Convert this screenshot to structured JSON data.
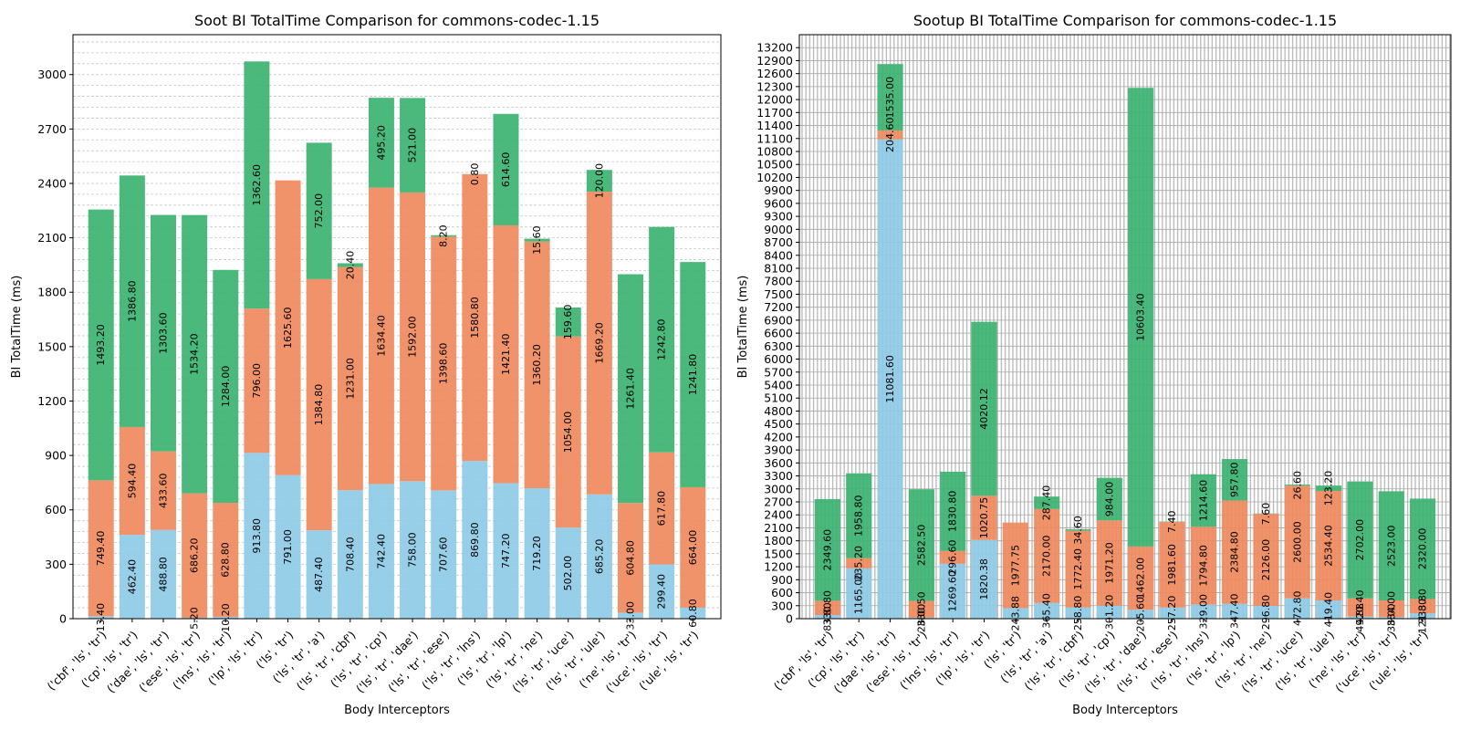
{
  "chart_data": [
    {
      "type": "bar",
      "stacked": true,
      "title": "Soot BI TotalTime Comparison for commons-codec-1.15",
      "xlabel": "Body Interceptors",
      "ylabel": "BI TotalTime (ms)",
      "ylim": [
        0,
        3220
      ],
      "yticks": [
        0,
        300,
        600,
        900,
        1200,
        1500,
        1800,
        2100,
        2400,
        2700,
        3000
      ],
      "grid": true,
      "categories": [
        "('cbf', 'ls', 'tr')",
        "('cp', 'ls', 'tr')",
        "('dae', 'ls', 'tr')",
        "('ese', 'ls', 'tr')",
        "('lns', 'ls', 'tr')",
        "('lp', 'ls', 'tr')",
        "('ls', 'tr')",
        "('ls', 'tr', 'a')",
        "('ls', 'tr', 'cbf')",
        "('ls', 'tr', 'cp')",
        "('ls', 'tr', 'dae')",
        "('ls', 'tr', 'ese')",
        "('ls', 'tr', 'lns')",
        "('ls', 'tr', 'lp')",
        "('ls', 'tr', 'ne')",
        "('ls', 'tr', 'uce')",
        "('ls', 'tr', 'ule')",
        "('ne', 'ls', 'tr')",
        "('uce', 'ls', 'tr')",
        "('ule', 'ls', 'tr')"
      ],
      "series": [
        {
          "color": "#8ecae6",
          "values": [
            13.4,
            462.4,
            488.8,
            5.2,
            10.2,
            913.8,
            791.0,
            487.4,
            708.4,
            742.4,
            758.0,
            707.6,
            869.8,
            747.2,
            719.2,
            502.0,
            685.2,
            33.0,
            299.4,
            60.8
          ],
          "labels": [
            "13.40",
            "462.40",
            "488.80",
            "5.20",
            "10.20",
            "913.80",
            "791.00",
            "487.40",
            "708.40",
            "742.40",
            "758.00",
            "707.60",
            "869.80",
            "747.20",
            "719.20",
            "502.00",
            "685.20",
            "33.00",
            "299.40",
            "60.80"
          ]
        },
        {
          "color": "#f08a5d",
          "values": [
            749.4,
            594.4,
            433.6,
            686.2,
            628.8,
            796.0,
            1625.6,
            1384.8,
            1231.0,
            1634.4,
            1592.0,
            1398.6,
            1580.8,
            1421.4,
            1360.2,
            1054.0,
            1669.2,
            604.8,
            617.8,
            664.0
          ],
          "labels": [
            "749.40",
            "594.40",
            "433.60",
            "686.20",
            "628.80",
            "796.00",
            "1625.60",
            "1384.80",
            "1231.00",
            "1634.40",
            "1592.00",
            "1398.60",
            "1580.80",
            "1421.40",
            "1360.20",
            "1054.00",
            "1669.20",
            "604.80",
            "617.80",
            "664.00"
          ]
        },
        {
          "color": "#3cb371",
          "values": [
            1493.2,
            1386.8,
            1303.6,
            1534.2,
            1284.0,
            1362.6,
            0,
            752.0,
            20.4,
            495.2,
            521.0,
            8.2,
            0.8,
            614.6,
            15.6,
            159.6,
            120.0,
            1261.4,
            1242.8,
            1241.8
          ],
          "labels": [
            "1493.20",
            "1386.80",
            "1303.60",
            "1534.20",
            "1284.00",
            "1362.60",
            "",
            "752.00",
            "20.40",
            "495.20",
            "521.00",
            "8.20",
            "0.80",
            "614.60",
            "15.60",
            "159.60",
            "120.00",
            "1261.40",
            "1242.80",
            "1241.80"
          ]
        }
      ]
    },
    {
      "type": "bar",
      "stacked": true,
      "title": "Sootup BI TotalTime Comparison for commons-codec-1.15",
      "xlabel": "Body Interceptors",
      "ylabel": "BI TotalTime (ms)",
      "ylim": [
        0,
        13500
      ],
      "yticks": [
        0,
        300,
        600,
        900,
        1200,
        1500,
        1800,
        2100,
        2400,
        2700,
        3000,
        3300,
        3600,
        3900,
        4200,
        4500,
        4800,
        5100,
        5400,
        5700,
        6000,
        6300,
        6600,
        6900,
        7200,
        7500,
        7800,
        8100,
        8400,
        8700,
        9000,
        9300,
        9600,
        9900,
        10200,
        10500,
        10800,
        11100,
        11400,
        11700,
        12000,
        12300,
        12600,
        12900,
        13200
      ],
      "grid": true,
      "categories": [
        "('cbf', 'ls', 'tr')",
        "('cp', 'ls', 'tr')",
        "('dae', 'ls', 'tr')",
        "('ese', 'ls', 'tr')",
        "('lns', 'ls', 'tr')",
        "('lp', 'ls', 'tr')",
        "('ls', 'tr')",
        "('ls', 'tr', 'a')",
        "('ls', 'tr', 'cbf')",
        "('ls', 'tr', 'cp')",
        "('ls', 'tr', 'dae')",
        "('ls', 'tr', 'ese')",
        "('ls', 'tr', 'lns')",
        "('ls', 'tr', 'lp')",
        "('ls', 'tr', 'ne')",
        "('ls', 'tr', 'uce')",
        "('ls', 'tr', 'ule')",
        "('ne', 'ls', 'tr')",
        "('uce', 'ls', 'tr')",
        "('ule', 'ls', 'tr')"
      ],
      "series": [
        {
          "color": "#8ecae6",
          "values": [
            83.8,
            1165.0,
            11081.6,
            28.0,
            1269.6,
            1820.38,
            243.88,
            365.4,
            258.8,
            301.2,
            205.6,
            257.2,
            329.0,
            347.4,
            296.8,
            472.8,
            419.4,
            49.88,
            38.0,
            121.8
          ],
          "labels": [
            "83.80",
            "1165.00",
            "11081.60",
            "28.00",
            "1269.60",
            "1820.38",
            "243.88",
            "365.40",
            "258.80",
            "301.20",
            "205.60",
            "257.20",
            "329.00",
            "347.40",
            "296.80",
            "472.80",
            "419.40",
            "49.88",
            "38.00",
            "121.80"
          ]
        },
        {
          "color": "#f08a5d",
          "values": [
            330.8,
            235.2,
            204.6,
            380.5,
            296.6,
            1020.75,
            1977.75,
            2170.0,
            1772.4,
            1971.2,
            1462.0,
            1981.6,
            1794.8,
            2384.8,
            2126.0,
            2600.0,
            2534.4,
            420.4,
            384.0,
            333.8
          ],
          "labels": [
            "330.80",
            "235.20",
            "204.60",
            "380.50",
            "296.60",
            "1020.75",
            "1977.75",
            "2170.00",
            "1772.40",
            "1971.20",
            "1462.00",
            "1981.60",
            "1794.80",
            "2384.80",
            "2126.00",
            "2600.00",
            "2534.40",
            "420.40",
            "384.00",
            "333.80"
          ]
        },
        {
          "color": "#3cb371",
          "values": [
            2349.6,
            1958.8,
            1535.0,
            2582.5,
            1830.8,
            4020.12,
            0,
            287.4,
            34.6,
            984.0,
            10603.4,
            7.4,
            1214.6,
            957.8,
            7.6,
            26.6,
            123.2,
            2702.0,
            2523.0,
            2320.0
          ],
          "labels": [
            "2349.60",
            "1958.80",
            "1535.00",
            "2582.50",
            "1830.80",
            "4020.12",
            "",
            "287.40",
            "34.60",
            "984.00",
            "10603.40",
            "7.40",
            "1214.60",
            "957.80",
            "7.60",
            "26.60",
            "123.20",
            "2702.00",
            "2523.00",
            "2320.00"
          ]
        }
      ]
    }
  ]
}
